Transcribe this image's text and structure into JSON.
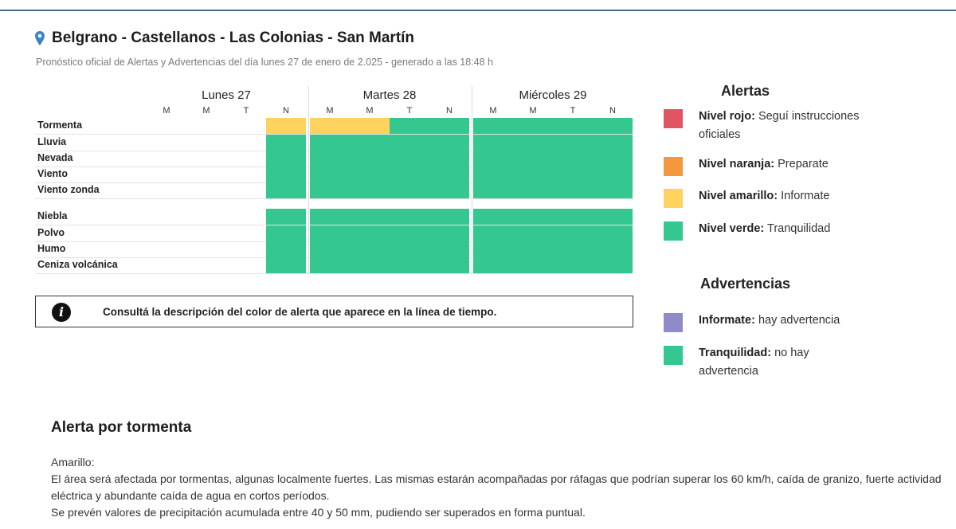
{
  "header": {
    "title": "Belgrano - Castellanos - Las Colonias - San Martín",
    "subtitle": "Pronóstico oficial de Alertas y Advertencias del día lunes 27 de enero de 2.025 - generado a las 18:48 h",
    "icon": "map-pin-icon"
  },
  "colors": {
    "rojo": "#e05561",
    "naranja": "#f4973f",
    "amarillo": "#fdd25e",
    "verde": "#35c790",
    "violeta": "#8f8bc8"
  },
  "timeline": {
    "days": [
      {
        "label": "Lunes 27",
        "cols": [
          "M",
          "M",
          "T",
          "N"
        ]
      },
      {
        "label": "Martes 28",
        "cols": [
          "M",
          "M",
          "T",
          "N"
        ]
      },
      {
        "label": "Miércoles 29",
        "cols": [
          "M",
          "M",
          "T",
          "N"
        ]
      }
    ],
    "rows": [
      {
        "label": "Tormenta",
        "cells": [
          null,
          null,
          null,
          "amarillo",
          "amarillo",
          "amarillo",
          "verde",
          "verde",
          "verde",
          "verde",
          "verde",
          "verde"
        ]
      },
      {
        "label": "Lluvia",
        "cells": [
          null,
          null,
          null,
          "verde",
          "verde",
          "verde",
          "verde",
          "verde",
          "verde",
          "verde",
          "verde",
          "verde"
        ]
      },
      {
        "label": "Nevada",
        "cells": [
          null,
          null,
          null,
          "verde",
          "verde",
          "verde",
          "verde",
          "verde",
          "verde",
          "verde",
          "verde",
          "verde"
        ]
      },
      {
        "label": "Viento",
        "cells": [
          null,
          null,
          null,
          "verde",
          "verde",
          "verde",
          "verde",
          "verde",
          "verde",
          "verde",
          "verde",
          "verde"
        ]
      },
      {
        "label": "Viento zonda",
        "cells": [
          null,
          null,
          null,
          "verde",
          "verde",
          "verde",
          "verde",
          "verde",
          "verde",
          "verde",
          "verde",
          "verde"
        ]
      },
      {
        "label": "Niebla",
        "cells": [
          null,
          null,
          null,
          "verde",
          "verde",
          "verde",
          "verde",
          "verde",
          "verde",
          "verde",
          "verde",
          "verde"
        ]
      },
      {
        "label": "Polvo",
        "cells": [
          null,
          null,
          null,
          "verde",
          "verde",
          "verde",
          "verde",
          "verde",
          "verde",
          "verde",
          "verde",
          "verde"
        ]
      },
      {
        "label": "Humo",
        "cells": [
          null,
          null,
          null,
          "verde",
          "verde",
          "verde",
          "verde",
          "verde",
          "verde",
          "verde",
          "verde",
          "verde"
        ]
      },
      {
        "label": "Ceniza volcánica",
        "cells": [
          null,
          null,
          null,
          "verde",
          "verde",
          "verde",
          "verde",
          "verde",
          "verde",
          "verde",
          "verde",
          "verde"
        ]
      }
    ]
  },
  "info": {
    "icon": "info-icon",
    "text": "Consultá la descripción del color de alerta que aparece en la línea de tiempo."
  },
  "alertas": {
    "title": "Alertas",
    "items": [
      {
        "color": "rojo",
        "level": "Nivel rojo:",
        "text": "Seguí instrucciones oficiales"
      },
      {
        "color": "naranja",
        "level": "Nivel naranja:",
        "text": "Preparate"
      },
      {
        "color": "amarillo",
        "level": "Nivel amarillo:",
        "text": "Informate"
      },
      {
        "color": "verde",
        "level": "Nivel verde:",
        "text": "Tranquilidad"
      }
    ]
  },
  "advertencias": {
    "title": "Advertencias",
    "items": [
      {
        "color": "violeta",
        "level": "Informate:",
        "text": "hay advertencia"
      },
      {
        "color": "verde",
        "level": "Tranquilidad:",
        "text": "no hay advertencia"
      }
    ]
  },
  "detail": {
    "title": "Alerta por tormenta",
    "level_label": "Amarillo:",
    "paragraphs": [
      "El área será afectada por tormentas, algunas localmente fuertes. Las mismas estarán acompañadas por ráfagas que podrían superar los 60 km/h, caída de granizo, fuerte actividad eléctrica y abundante caída de agua en cortos períodos.",
      "Se prevén valores de precipitación acumulada entre 40 y 50 mm, pudiendo ser superados en forma puntual."
    ]
  }
}
